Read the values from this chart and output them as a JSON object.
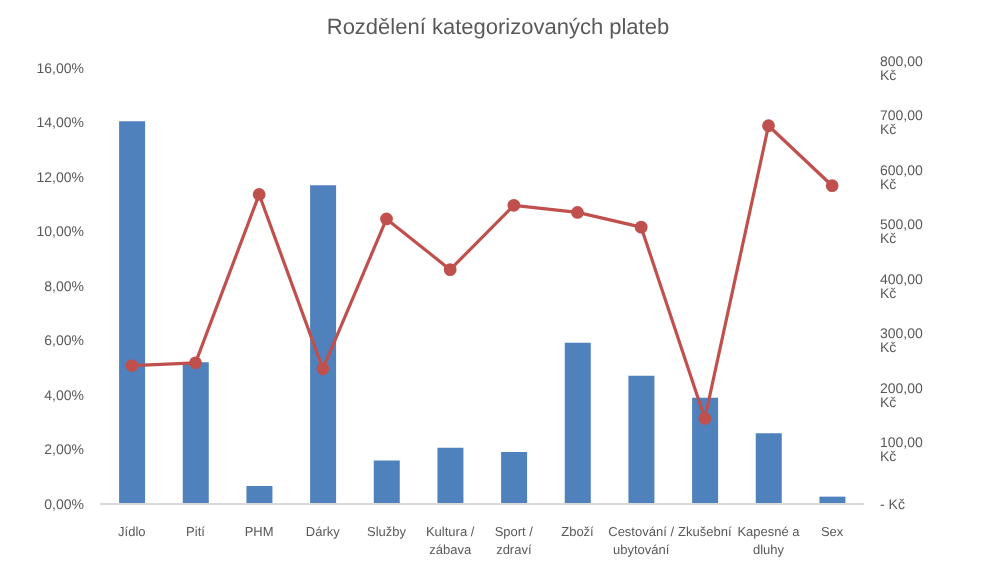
{
  "chart_data": {
    "type": "bar",
    "title": "Rozdělení kategorizovaných plateb",
    "categories": [
      "Jídlo",
      "Pití",
      "PHM",
      "Dárky",
      "Služby",
      "Kultura / zábava",
      "Sport / zdraví",
      "Zboží",
      "Cestování / ubytování",
      "Zkušební",
      "Kapesné a dluhy",
      "Sex"
    ],
    "series": [
      {
        "color": "#4f81bd",
        "values": [
          14.05,
          5.2,
          0.66,
          11.7,
          1.6,
          2.06,
          1.91,
          5.92,
          4.71,
          3.9,
          2.6,
          0.27
        ]
      },
      {
        "type": "line",
        "axis": "y2",
        "color": "#c0504d",
        "marker": "circle",
        "values": [
          254,
          259,
          568,
          248,
          523,
          430,
          548,
          535,
          508,
          157,
          694,
          584
        ]
      }
    ],
    "ylim": [
      0,
      16
    ],
    "yticks": [
      {
        "value": 0,
        "label": "0,00%"
      },
      {
        "value": 2,
        "label": "2,00%"
      },
      {
        "value": 4,
        "label": "4,00%"
      },
      {
        "value": 6,
        "label": "6,00%"
      },
      {
        "value": 8,
        "label": "8,00%"
      },
      {
        "value": 10,
        "label": "10,00%"
      },
      {
        "value": 12,
        "label": "12,00%"
      },
      {
        "value": 14,
        "label": "14,00%"
      },
      {
        "value": 16,
        "label": "16,00%"
      }
    ],
    "y2lim": [
      0,
      800
    ],
    "y2ticks": [
      {
        "value": 0,
        "label": "-   Kč"
      },
      {
        "value": 100,
        "label": "100,00 Kč"
      },
      {
        "value": 200,
        "label": "200,00 Kč"
      },
      {
        "value": 300,
        "label": "300,00 Kč"
      },
      {
        "value": 400,
        "label": "400,00 Kč"
      },
      {
        "value": 500,
        "label": "500,00 Kč"
      },
      {
        "value": 600,
        "label": "600,00 Kč"
      },
      {
        "value": 700,
        "label": "700,00 Kč"
      },
      {
        "value": 800,
        "label": "800,00 Kč"
      }
    ],
    "grid": false,
    "legend": false
  }
}
